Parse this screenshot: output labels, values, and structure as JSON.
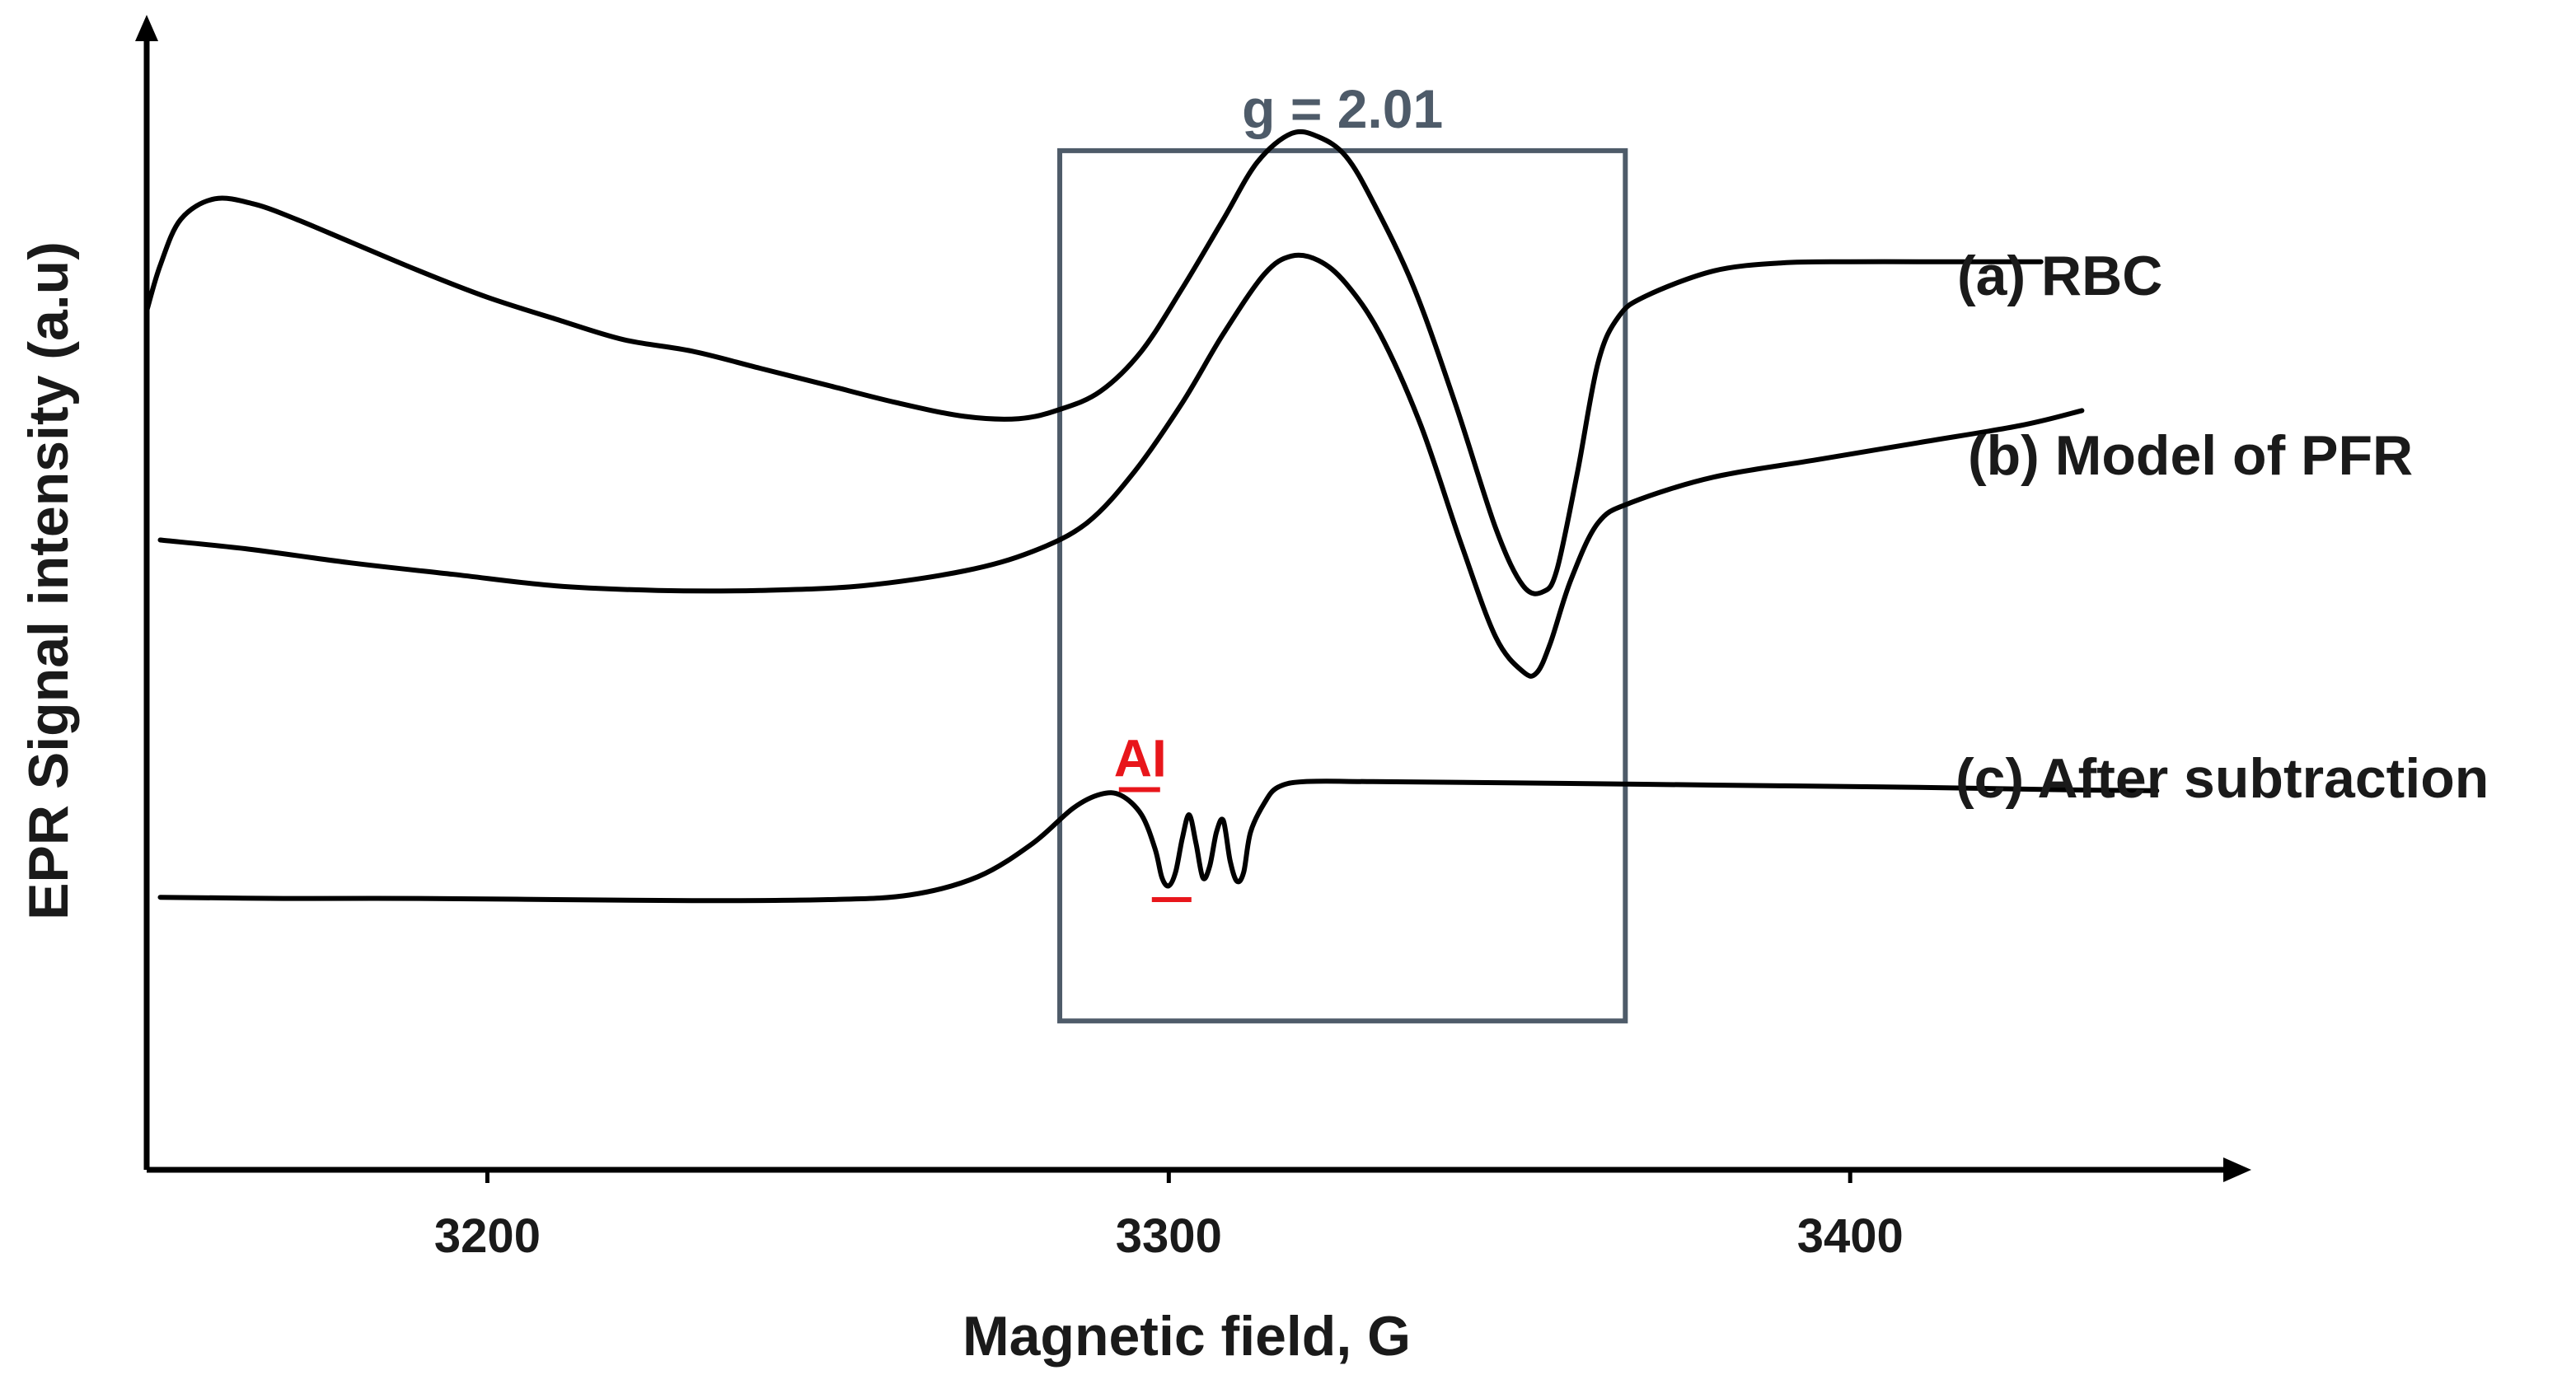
{
  "chart_data": {
    "type": "line",
    "title": "",
    "xlabel": "Magnetic field, G",
    "ylabel": "EPR Signal intensity (a.u)",
    "xlim": [
      3150,
      3455
    ],
    "ylim": [
      0,
      100
    ],
    "grid": false,
    "x_ticks": [
      {
        "value": 3200,
        "label": "3200"
      },
      {
        "value": 3300,
        "label": "3300"
      },
      {
        "value": 3400,
        "label": "3400"
      }
    ],
    "series": [
      {
        "name": "(a) RBC",
        "color": "#000000",
        "points": [
          [
            3150,
            75
          ],
          [
            3152,
            79
          ],
          [
            3155,
            83
          ],
          [
            3160,
            84.8
          ],
          [
            3166,
            84.3
          ],
          [
            3172,
            83
          ],
          [
            3180,
            81
          ],
          [
            3190,
            78.5
          ],
          [
            3200,
            76.2
          ],
          [
            3210,
            74.3
          ],
          [
            3220,
            72.5
          ],
          [
            3230,
            71.5
          ],
          [
            3240,
            70
          ],
          [
            3250,
            68.5
          ],
          [
            3260,
            67
          ],
          [
            3270,
            65.8
          ],
          [
            3278,
            65.6
          ],
          [
            3284,
            66.4
          ],
          [
            3290,
            68
          ],
          [
            3296,
            71.5
          ],
          [
            3302,
            77
          ],
          [
            3308,
            83
          ],
          [
            3313,
            88
          ],
          [
            3318,
            90.5
          ],
          [
            3322,
            90.2
          ],
          [
            3326,
            88.5
          ],
          [
            3330,
            84.5
          ],
          [
            3336,
            77
          ],
          [
            3342,
            67
          ],
          [
            3348,
            56
          ],
          [
            3352,
            51
          ],
          [
            3355,
            50.5
          ],
          [
            3357,
            52.5
          ],
          [
            3360,
            61
          ],
          [
            3363,
            70.5
          ],
          [
            3366,
            74.5
          ],
          [
            3370,
            76.3
          ],
          [
            3380,
            78.5
          ],
          [
            3390,
            79.2
          ],
          [
            3400,
            79.3
          ],
          [
            3410,
            79.3
          ],
          [
            3420,
            79.3
          ],
          [
            3428,
            79.3
          ]
        ]
      },
      {
        "name": "(b) Model of PFR",
        "color": "#000000",
        "points": [
          [
            3152,
            55
          ],
          [
            3165,
            54.2
          ],
          [
            3180,
            53
          ],
          [
            3195,
            52
          ],
          [
            3210,
            51
          ],
          [
            3225,
            50.6
          ],
          [
            3240,
            50.6
          ],
          [
            3255,
            51
          ],
          [
            3270,
            52.3
          ],
          [
            3280,
            54
          ],
          [
            3288,
            56.5
          ],
          [
            3295,
            61
          ],
          [
            3302,
            67
          ],
          [
            3308,
            73
          ],
          [
            3314,
            78.2
          ],
          [
            3318,
            79.8
          ],
          [
            3322,
            79.4
          ],
          [
            3326,
            77.4
          ],
          [
            3331,
            73
          ],
          [
            3337,
            65
          ],
          [
            3343,
            54.5
          ],
          [
            3348,
            46.5
          ],
          [
            3352,
            43.5
          ],
          [
            3354,
            43.4
          ],
          [
            3356,
            46
          ],
          [
            3359,
            51.5
          ],
          [
            3363,
            56.5
          ],
          [
            3368,
            58.3
          ],
          [
            3380,
            60.5
          ],
          [
            3395,
            62
          ],
          [
            3410,
            63.5
          ],
          [
            3425,
            65
          ],
          [
            3434,
            66.3
          ]
        ]
      },
      {
        "name": "(c) After subtraction",
        "color": "#000000",
        "points": [
          [
            3152,
            23.8
          ],
          [
            3170,
            23.7
          ],
          [
            3190,
            23.7
          ],
          [
            3210,
            23.6
          ],
          [
            3230,
            23.5
          ],
          [
            3250,
            23.6
          ],
          [
            3262,
            24
          ],
          [
            3272,
            25.6
          ],
          [
            3280,
            28.5
          ],
          [
            3286,
            31.6
          ],
          [
            3290,
            32.8
          ],
          [
            3293,
            32.7
          ],
          [
            3296,
            31
          ],
          [
            3298,
            28
          ],
          [
            3299,
            25.5
          ],
          [
            3300,
            24.8
          ],
          [
            3301,
            26
          ],
          [
            3302,
            29
          ],
          [
            3303,
            31
          ],
          [
            3304,
            28.5
          ],
          [
            3305,
            25.5
          ],
          [
            3306,
            26.5
          ],
          [
            3307,
            29.5
          ],
          [
            3308,
            30.5
          ],
          [
            3309,
            27
          ],
          [
            3310,
            25.2
          ],
          [
            3311,
            26
          ],
          [
            3312,
            29.5
          ],
          [
            3314,
            32
          ],
          [
            3316,
            33.4
          ],
          [
            3320,
            33.9
          ],
          [
            3330,
            33.9
          ],
          [
            3350,
            33.8
          ],
          [
            3380,
            33.6
          ],
          [
            3410,
            33.4
          ],
          [
            3430,
            33.2
          ],
          [
            3445,
            33.1
          ]
        ]
      }
    ],
    "box": {
      "label": "g = 2.01",
      "x_range": [
        3284,
        3367
      ],
      "y_range": [
        13,
        89
      ],
      "color": "#4e5b69"
    },
    "annotation": {
      "label": "AI",
      "color": "#e8161b",
      "upper_level": 33.2,
      "lower_level": 23.6,
      "x_center": 3298
    }
  }
}
